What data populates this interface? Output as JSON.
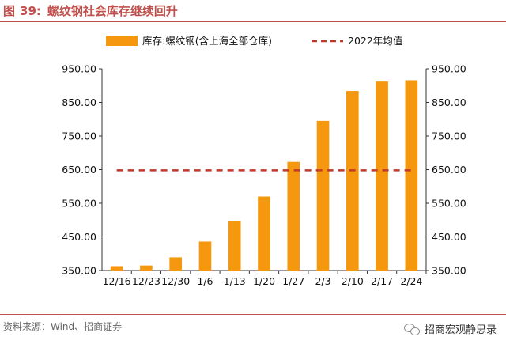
{
  "figure": {
    "prefix": "图",
    "number": "39:",
    "title": "螺纹钢社会库存继续回升"
  },
  "source": "资料来源：Wind、招商证券",
  "watermark": "招商宏观静思录",
  "chart_data": {
    "type": "bar",
    "categories": [
      "12/16",
      "12/23",
      "12/30",
      "1/6",
      "1/13",
      "1/20",
      "1/27",
      "2/3",
      "2/10",
      "2/17",
      "2/24"
    ],
    "series": [
      {
        "name": "库存:螺纹钢(含上海全部仓库)",
        "type": "bar",
        "color": "#f5970f",
        "values": [
          363,
          365,
          389,
          436,
          497,
          570,
          673,
          795,
          884,
          912,
          916
        ]
      },
      {
        "name": "2022年均值",
        "type": "line",
        "style": "dashed",
        "color": "#c0392b",
        "values": [
          648,
          648,
          648,
          648,
          648,
          648,
          648,
          648,
          648,
          648,
          648
        ]
      }
    ],
    "y_ticks": [
      "350.00",
      "450.00",
      "550.00",
      "650.00",
      "750.00",
      "850.00",
      "950.00"
    ],
    "ylim": [
      350,
      950
    ],
    "dual_axis": true,
    "legend_position": "top",
    "grid": false
  }
}
